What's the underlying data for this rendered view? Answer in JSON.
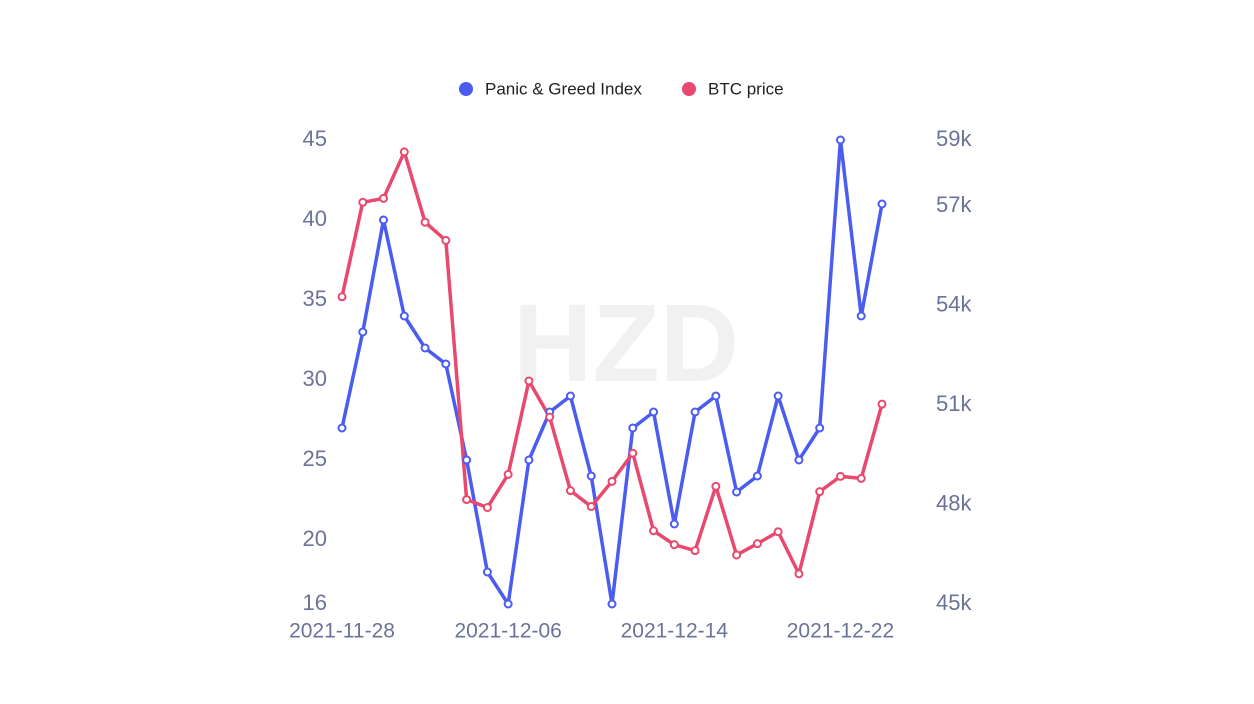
{
  "chart_data": {
    "type": "line",
    "watermark": "HZD",
    "x": [
      "2021-11-28",
      "2021-11-29",
      "2021-11-30",
      "2021-12-01",
      "2021-12-02",
      "2021-12-03",
      "2021-12-04",
      "2021-12-05",
      "2021-12-06",
      "2021-12-07",
      "2021-12-08",
      "2021-12-09",
      "2021-12-10",
      "2021-12-11",
      "2021-12-12",
      "2021-12-13",
      "2021-12-14",
      "2021-12-15",
      "2021-12-16",
      "2021-12-17",
      "2021-12-18",
      "2021-12-19",
      "2021-12-20",
      "2021-12-21",
      "2021-12-22",
      "2021-12-23",
      "2021-12-24"
    ],
    "xticks": [
      "2021-11-28",
      "2021-12-06",
      "2021-12-14",
      "2021-12-22"
    ],
    "series": [
      {
        "name": "Panic & Greed Index",
        "color": "#4b5cf0",
        "axis": "y",
        "values": [
          27,
          33,
          40,
          34,
          32,
          31,
          25,
          18,
          16,
          25,
          28,
          29,
          24,
          16,
          27,
          28,
          21,
          28,
          29,
          23,
          24,
          29,
          25,
          27,
          45,
          34,
          41
        ]
      },
      {
        "name": "BTC price",
        "color": "#e8496e",
        "axis": "y2",
        "values": [
          54270,
          57120,
          57240,
          58640,
          56520,
          55970,
          48150,
          47910,
          48910,
          51730,
          50640,
          48420,
          47940,
          48700,
          49550,
          47210,
          46790,
          46610,
          48550,
          46480,
          46820,
          47180,
          45910,
          48390,
          48850,
          48790,
          51030
        ]
      }
    ],
    "ylim": [
      16,
      45
    ],
    "yticks": [
      16,
      20,
      25,
      30,
      35,
      40,
      45
    ],
    "y2lim": [
      45000,
      59000
    ],
    "y2ticks": [
      {
        "value": 45000,
        "label": "45k"
      },
      {
        "value": 48000,
        "label": "48k"
      },
      {
        "value": 51000,
        "label": "51k"
      },
      {
        "value": 54000,
        "label": "54k"
      },
      {
        "value": 57000,
        "label": "57k"
      },
      {
        "value": 59000,
        "label": "59k"
      }
    ],
    "legend": "top",
    "grid": false
  }
}
